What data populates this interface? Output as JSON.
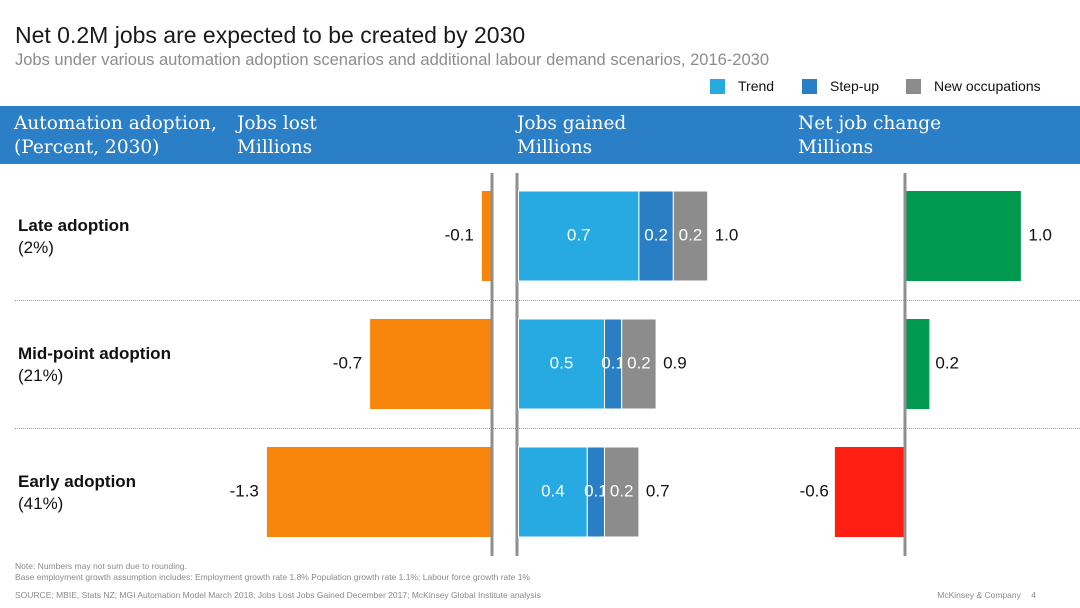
{
  "title": "Net 0.2M jobs are expected to be created by 2030",
  "subtitle": "Jobs under various automation adoption scenarios and additional labour demand scenarios, 2016-2030",
  "legend": [
    {
      "label": "Trend",
      "color": "#27aae1"
    },
    {
      "label": "Step-up",
      "color": "#2a7ec4"
    },
    {
      "label": "New occupations",
      "color": "#8c8c8c"
    }
  ],
  "header": {
    "col1_line1": "Automation adoption,",
    "col1_line2": "(Percent, 2030)",
    "col2_line1": "Jobs lost",
    "col2_line2": "Millions",
    "col3_line1": "Jobs gained",
    "col3_line2": "Millions",
    "col4_line1": "Net job change",
    "col4_line2": "Millions"
  },
  "rows": [
    {
      "label": "Late adoption",
      "percent": "(2%)"
    },
    {
      "label": "Mid-point adoption",
      "percent": "(21%)"
    },
    {
      "label": "Early adoption",
      "percent": "(41%)"
    }
  ],
  "chart_data": {
    "type": "bar",
    "categories": [
      "Late adoption (2%)",
      "Mid-point adoption (21%)",
      "Early adoption (41%)"
    ],
    "jobs_lost": {
      "values": [
        -0.05,
        -0.7,
        -1.3
      ],
      "labels": [
        "-0.1",
        "-0.7",
        "-1.3"
      ],
      "color": "#f7850c"
    },
    "jobs_gained": {
      "series": [
        {
          "name": "Trend",
          "values": [
            0.7,
            0.5,
            0.4
          ],
          "labels": [
            "0.7",
            "0.5",
            "0.4"
          ],
          "color": "#27aae1"
        },
        {
          "name": "Step-up",
          "values": [
            0.2,
            0.1,
            0.1
          ],
          "labels": [
            "0.2",
            "0.1",
            "0.1"
          ],
          "color": "#2a7ec4"
        },
        {
          "name": "New occupations",
          "values": [
            0.2,
            0.2,
            0.2
          ],
          "labels": [
            "0.2",
            "0.2",
            "0.2"
          ],
          "color": "#8c8c8c"
        }
      ],
      "totals": [
        "1.0",
        "0.9",
        "0.7"
      ]
    },
    "net_change": {
      "values": [
        1.0,
        0.2,
        -0.6
      ],
      "labels": [
        "1.0",
        "0.2",
        "-0.6"
      ],
      "positive_color": "#009a4e",
      "negative_color": "#ff1e12"
    }
  },
  "notes": [
    "Note: Numbers may not sum due to rounding.",
    "Base employment growth assumption includes: Employment growth rate 1.8% Population growth rate 1.1%; Labour force growth rate 1%",
    "SOURCE: MBIE, Stats NZ; MGI Automation Model March 2018; Jobs Lost Jobs Gained December 2017; McKinsey Global Institute analysis"
  ],
  "footer": {
    "company": "McKinsey & Company",
    "page": "4"
  }
}
